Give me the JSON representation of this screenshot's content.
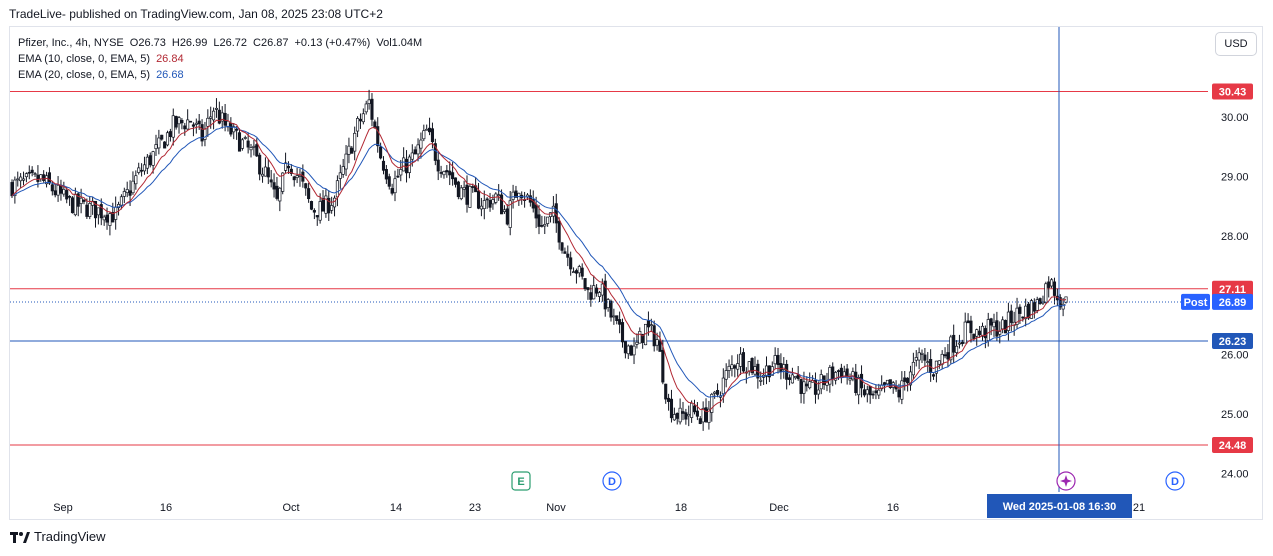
{
  "header": {
    "publisher_line": "TradeLive- published on TradingView.com, Jan 08, 2025 23:08 UTC+2"
  },
  "legend": {
    "symbol": "Pfizer, Inc., 4h, NYSE",
    "open": "O26.73",
    "high": "H26.99",
    "low": "L26.72",
    "close": "C26.87",
    "change": "+0.13 (+0.47%)",
    "volume": "Vol1.04M",
    "ema10_label": "EMA (10, close, 0, EMA, 5)",
    "ema10_value": "26.84",
    "ema20_label": "EMA (20, close, 0, EMA, 5)",
    "ema20_value": "26.68"
  },
  "toolbar": {
    "currency_label": "USD"
  },
  "footer": {
    "brand": "TradingView"
  },
  "chart_data": {
    "type": "candlestick",
    "y_ticks": [
      "24.00",
      "25.00",
      "26.00",
      "27.00",
      "28.00",
      "29.00",
      "30.00"
    ],
    "y_range": [
      23.95,
      31.0
    ],
    "x_labels": [
      "Sep",
      "16",
      "Oct",
      "14",
      "23",
      "Nov",
      "18",
      "Dec",
      "16",
      "21"
    ],
    "horizontal_levels": [
      {
        "label": "30.43",
        "value": 30.43,
        "color": "#e63946"
      },
      {
        "label": "27.11",
        "value": 27.11,
        "color": "#e63946"
      },
      {
        "label": "26.23",
        "value": 26.23,
        "color": "#2157b8"
      },
      {
        "label": "24.48",
        "value": 24.48,
        "color": "#e63946"
      }
    ],
    "post_label": "Post",
    "post_value": "26.89",
    "crosshair_label": "Wed 2025-01-08   16:30",
    "event_markers": [
      "E",
      "D",
      "D"
    ],
    "series": [
      {
        "name": "EMA (10, close, 0, EMA, 5)",
        "color": "#b22833"
      },
      {
        "name": "EMA (20, close, 0, EMA, 5)",
        "color": "#2157b8"
      }
    ],
    "price_path": [
      [
        0,
        28.85
      ],
      [
        10,
        28.95
      ],
      [
        20,
        28.55
      ],
      [
        28,
        28.45
      ],
      [
        36,
        28.35
      ],
      [
        44,
        29.05
      ],
      [
        52,
        29.55
      ],
      [
        56,
        29.85
      ],
      [
        62,
        29.95
      ],
      [
        66,
        29.65
      ],
      [
        70,
        30.15
      ],
      [
        74,
        29.85
      ],
      [
        80,
        29.55
      ],
      [
        84,
        29.35
      ],
      [
        88,
        29.05
      ],
      [
        92,
        28.55
      ],
      [
        96,
        29.25
      ],
      [
        100,
        28.95
      ],
      [
        104,
        28.45
      ],
      [
        108,
        28.45
      ],
      [
        112,
        28.65
      ],
      [
        116,
        29.25
      ],
      [
        120,
        29.85
      ],
      [
        124,
        30.25
      ],
      [
        128,
        29.35
      ],
      [
        132,
        28.85
      ],
      [
        136,
        29.15
      ],
      [
        140,
        29.35
      ],
      [
        144,
        29.75
      ],
      [
        148,
        29.25
      ],
      [
        152,
        29.05
      ],
      [
        156,
        28.75
      ],
      [
        160,
        28.65
      ],
      [
        164,
        28.55
      ],
      [
        168,
        28.65
      ],
      [
        172,
        28.35
      ],
      [
        176,
        28.85
      ],
      [
        180,
        28.55
      ],
      [
        184,
        28.15
      ],
      [
        188,
        28.35
      ],
      [
        192,
        27.75
      ],
      [
        196,
        27.45
      ],
      [
        200,
        27.05
      ],
      [
        204,
        27.15
      ],
      [
        208,
        26.65
      ],
      [
        212,
        26.25
      ],
      [
        216,
        26.05
      ],
      [
        220,
        26.45
      ],
      [
        224,
        26.25
      ],
      [
        228,
        25.15
      ],
      [
        232,
        24.95
      ],
      [
        236,
        25.05
      ],
      [
        240,
        24.95
      ],
      [
        244,
        25.25
      ],
      [
        248,
        25.65
      ],
      [
        252,
        25.95
      ],
      [
        256,
        25.85
      ],
      [
        260,
        25.65
      ],
      [
        264,
        25.85
      ],
      [
        268,
        25.75
      ],
      [
        272,
        25.65
      ],
      [
        276,
        25.35
      ],
      [
        280,
        25.45
      ],
      [
        284,
        25.65
      ],
      [
        288,
        25.75
      ],
      [
        292,
        25.55
      ],
      [
        296,
        25.35
      ],
      [
        300,
        25.25
      ],
      [
        304,
        25.45
      ],
      [
        308,
        25.35
      ],
      [
        312,
        25.75
      ],
      [
        316,
        25.95
      ],
      [
        320,
        25.75
      ],
      [
        324,
        26.05
      ],
      [
        328,
        26.25
      ],
      [
        332,
        26.45
      ],
      [
        336,
        26.35
      ],
      [
        340,
        26.45
      ],
      [
        344,
        26.45
      ],
      [
        348,
        26.65
      ],
      [
        352,
        26.75
      ],
      [
        356,
        26.85
      ],
      [
        360,
        27.25
      ],
      [
        364,
        26.95
      ],
      [
        366,
        26.87
      ]
    ]
  }
}
